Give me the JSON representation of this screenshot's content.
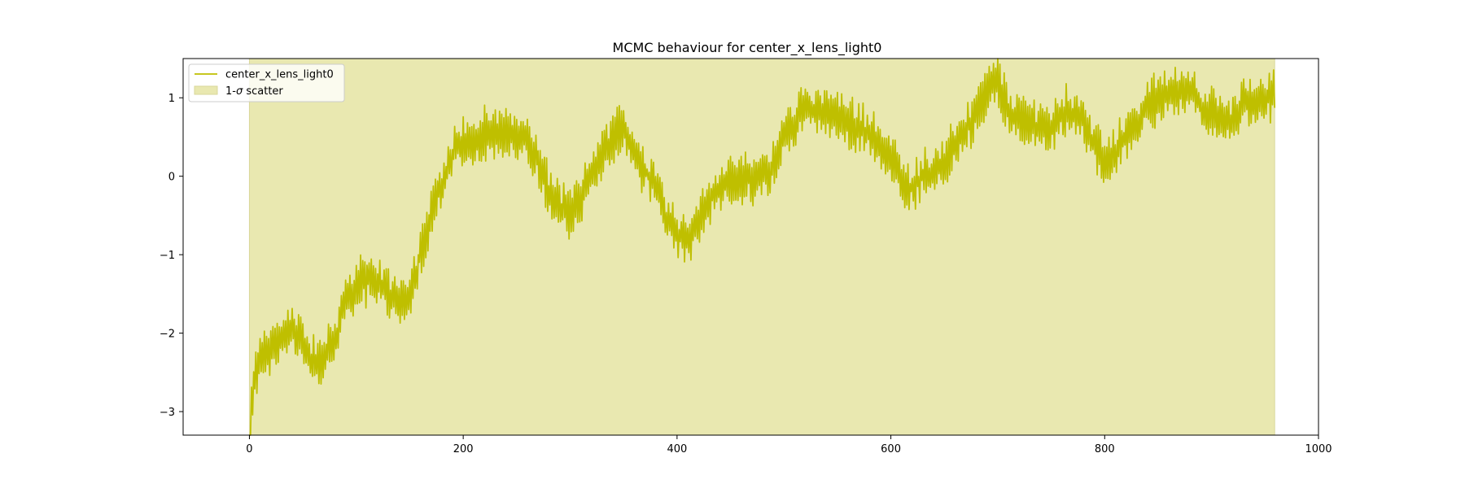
{
  "chart_data": {
    "type": "line",
    "title": "MCMC behaviour for center_x_lens_light0",
    "xlabel": "",
    "ylabel": "",
    "xlim": [
      -62,
      1000
    ],
    "ylim": [
      -3.3,
      1.5
    ],
    "xticks": [
      0,
      200,
      400,
      600,
      800,
      1000
    ],
    "yticks": [
      -3,
      -2,
      -1,
      0,
      1
    ],
    "xtick_labels": [
      "0",
      "200",
      "400",
      "600",
      "800",
      "1000"
    ],
    "ytick_labels": [
      "−3",
      "−2",
      "−1",
      "0",
      "1"
    ],
    "grid": false,
    "legend_placement": "top-left",
    "series": [
      {
        "name": "center_x_lens_light0",
        "color": "#bfbf00",
        "kind": "line",
        "n_points": 960,
        "anchors": [
          [
            0,
            -3.3
          ],
          [
            5,
            -2.5
          ],
          [
            20,
            -2.2
          ],
          [
            40,
            -1.9
          ],
          [
            55,
            -2.3
          ],
          [
            65,
            -2.4
          ],
          [
            80,
            -2.1
          ],
          [
            90,
            -1.6
          ],
          [
            100,
            -1.4
          ],
          [
            110,
            -1.3
          ],
          [
            120,
            -1.35
          ],
          [
            130,
            -1.5
          ],
          [
            140,
            -1.6
          ],
          [
            150,
            -1.5
          ],
          [
            160,
            -1.0
          ],
          [
            170,
            -0.5
          ],
          [
            180,
            -0.1
          ],
          [
            190,
            0.3
          ],
          [
            200,
            0.5
          ],
          [
            210,
            0.4
          ],
          [
            220,
            0.55
          ],
          [
            240,
            0.55
          ],
          [
            260,
            0.45
          ],
          [
            270,
            0.2
          ],
          [
            280,
            -0.2
          ],
          [
            290,
            -0.4
          ],
          [
            300,
            -0.45
          ],
          [
            310,
            -0.3
          ],
          [
            320,
            0.0
          ],
          [
            330,
            0.3
          ],
          [
            340,
            0.5
          ],
          [
            350,
            0.6
          ],
          [
            360,
            0.3
          ],
          [
            370,
            0.05
          ],
          [
            380,
            -0.1
          ],
          [
            390,
            -0.5
          ],
          [
            400,
            -0.7
          ],
          [
            410,
            -0.8
          ],
          [
            420,
            -0.6
          ],
          [
            430,
            -0.3
          ],
          [
            440,
            -0.15
          ],
          [
            460,
            -0.05
          ],
          [
            480,
            0.0
          ],
          [
            490,
            0.1
          ],
          [
            500,
            0.5
          ],
          [
            510,
            0.7
          ],
          [
            520,
            0.9
          ],
          [
            540,
            0.8
          ],
          [
            560,
            0.7
          ],
          [
            580,
            0.55
          ],
          [
            600,
            0.25
          ],
          [
            610,
            -0.05
          ],
          [
            620,
            -0.15
          ],
          [
            630,
            0.0
          ],
          [
            640,
            0.1
          ],
          [
            650,
            0.2
          ],
          [
            660,
            0.4
          ],
          [
            670,
            0.6
          ],
          [
            680,
            0.8
          ],
          [
            690,
            1.1
          ],
          [
            700,
            1.2
          ],
          [
            710,
            0.85
          ],
          [
            720,
            0.7
          ],
          [
            740,
            0.65
          ],
          [
            750,
            0.6
          ],
          [
            760,
            0.85
          ],
          [
            780,
            0.7
          ],
          [
            790,
            0.4
          ],
          [
            800,
            0.2
          ],
          [
            810,
            0.3
          ],
          [
            820,
            0.5
          ],
          [
            830,
            0.7
          ],
          [
            840,
            0.9
          ],
          [
            850,
            1.0
          ],
          [
            860,
            1.05
          ],
          [
            870,
            1.1
          ],
          [
            880,
            1.15
          ],
          [
            890,
            0.9
          ],
          [
            900,
            0.8
          ],
          [
            910,
            0.65
          ],
          [
            920,
            0.7
          ],
          [
            930,
            0.9
          ],
          [
            940,
            0.95
          ],
          [
            950,
            1.0
          ],
          [
            959,
            1.05
          ]
        ],
        "jitter_amplitude": 0.32
      },
      {
        "name": "1-σ scatter",
        "color": "#e9e8b0",
        "kind": "area",
        "x_range": [
          0,
          959
        ],
        "lower": -3.3,
        "upper": 1.5
      }
    ]
  },
  "legend": {
    "line_label": "center_x_lens_light0",
    "area_label_prefix": "1-",
    "area_label_sigma": "σ",
    "area_label_suffix": " scatter"
  }
}
